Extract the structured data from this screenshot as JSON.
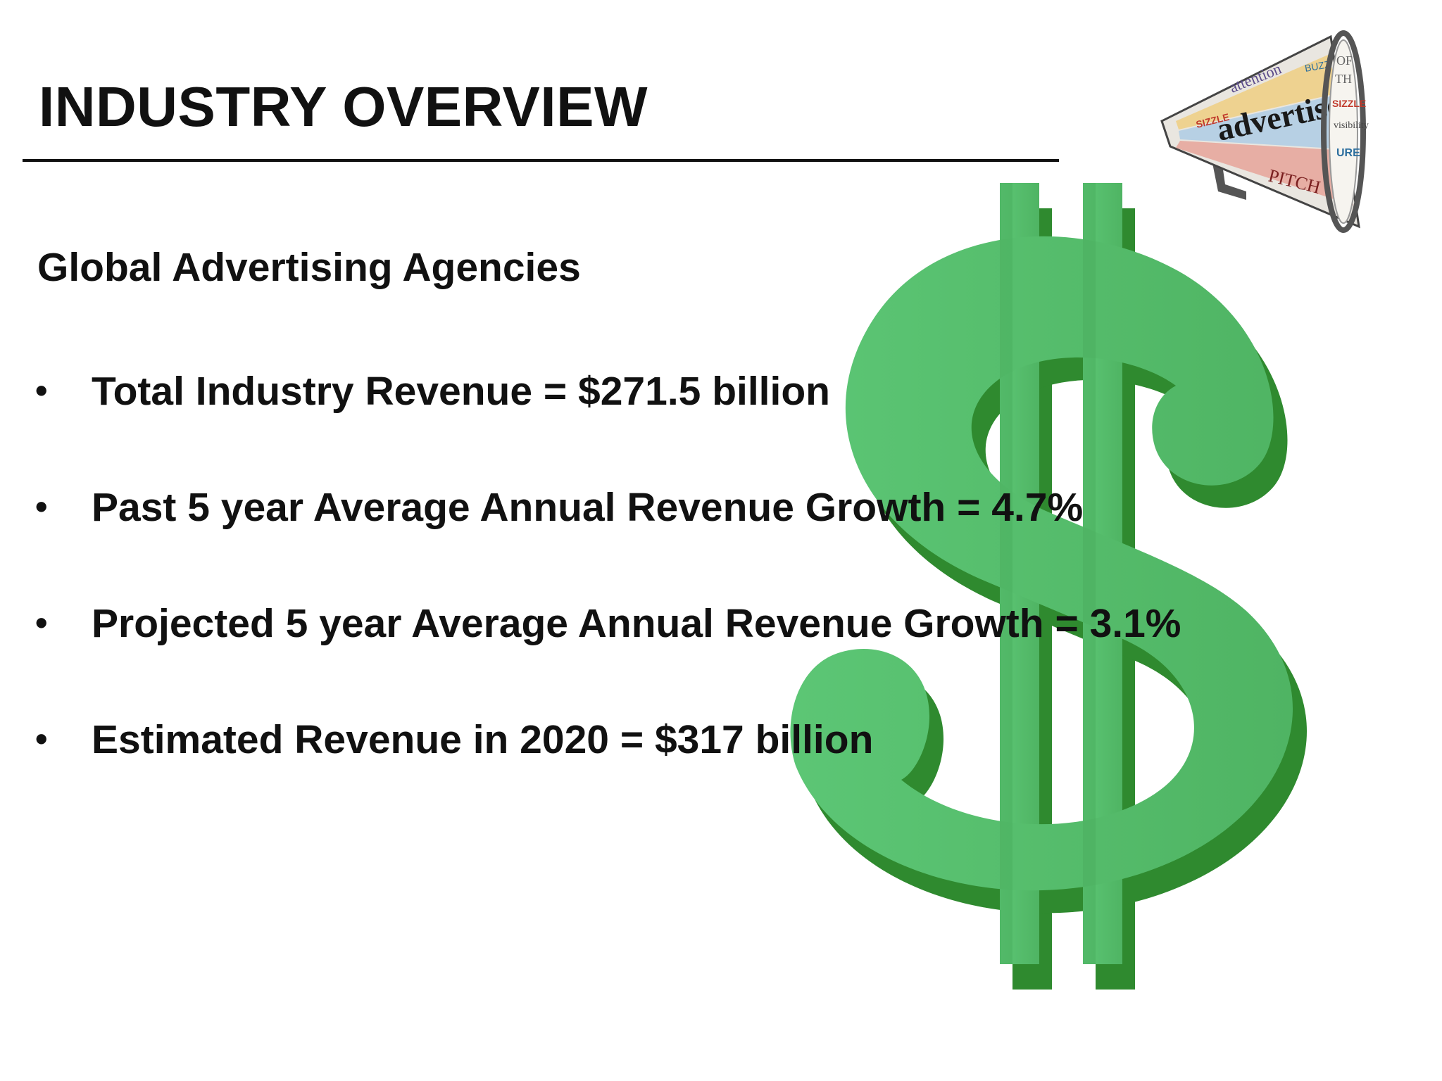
{
  "slide": {
    "title": "INDUSTRY OVERVIEW",
    "subtitle": "Global Advertising Agencies",
    "bullet_marker": "•",
    "bullets": [
      "Total Industry Revenue = $271.5 billion",
      "Past 5 year Average Annual Revenue Growth = 4.7%",
      "Projected 5 year Average Annual Revenue Growth = 3.1%",
      "Estimated Revenue in 2020 = $317 billion"
    ]
  },
  "images": {
    "dollar_sign": "dollar-sign-icon",
    "megaphone": "megaphone-icon",
    "megaphone_words": [
      "advertise!",
      "attention",
      "BUZZ",
      "SIZZLE",
      "PITCH",
      "WORD OF MOUTH",
      "visibility"
    ]
  },
  "colors": {
    "dollar_light": "#52b96a",
    "dollar_dark": "#2f8a2f",
    "text": "#111111",
    "rule": "#111111"
  }
}
